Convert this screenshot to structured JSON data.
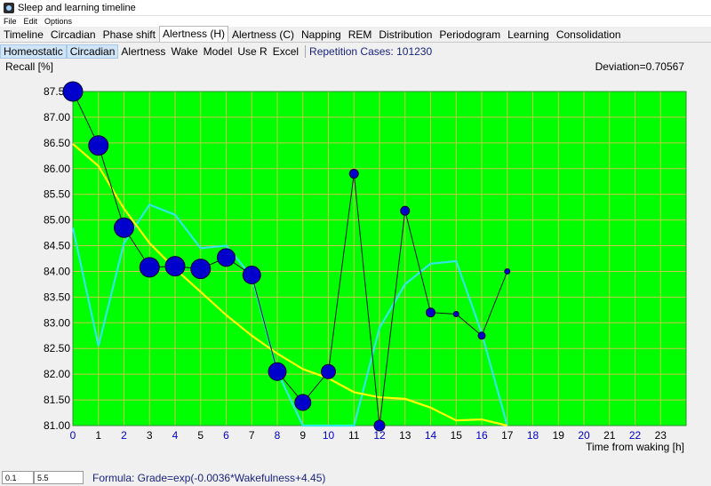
{
  "window": {
    "title": "Sleep and learning timeline"
  },
  "menu": [
    "File",
    "Edit",
    "Options"
  ],
  "tabs_primary": [
    {
      "label": "Timeline"
    },
    {
      "label": "Circadian"
    },
    {
      "label": "Phase shift"
    },
    {
      "label": "Alertness (H)",
      "active": true
    },
    {
      "label": "Alertness (C)"
    },
    {
      "label": "Napping"
    },
    {
      "label": "REM"
    },
    {
      "label": "Distribution"
    },
    {
      "label": "Periodogram"
    },
    {
      "label": "Learning"
    },
    {
      "label": "Consolidation"
    }
  ],
  "tabs_secondary": [
    {
      "label": "Homeostatic",
      "selected": true
    },
    {
      "label": "Circadian",
      "selected": true
    },
    {
      "label": "Alertness"
    },
    {
      "label": "Wake"
    },
    {
      "label": "Model"
    },
    {
      "label": "Use R"
    },
    {
      "label": "Excel"
    }
  ],
  "repetition_cases": "Repetition Cases: 101230",
  "deviation": "Deviation=0.70567",
  "status": {
    "input1": "0.1",
    "input2": "5.5",
    "formula": "Formula: Grade=exp(-0.0036*Wakefulness+4.45)"
  },
  "colors": {
    "plot_bg": "#00ff00",
    "grid": "#c8c84a",
    "cyan": "#33e6e6",
    "yellow": "#ffff00",
    "dot": "#0000cc",
    "axis_blue": "#0000cc"
  },
  "chart_data": {
    "type": "line",
    "ylabel": "Recall [%]",
    "xlabel": "Time from waking [h]",
    "xlim": [
      0,
      24
    ],
    "ylim": [
      81.0,
      87.5
    ],
    "x_ticks": [
      0,
      1,
      2,
      3,
      4,
      5,
      6,
      7,
      8,
      9,
      10,
      11,
      12,
      13,
      14,
      15,
      16,
      17,
      18,
      19,
      20,
      21,
      22,
      23
    ],
    "x_tick_colors": [
      "blue",
      "black",
      "blue",
      "black",
      "blue",
      "black",
      "blue",
      "black",
      "blue",
      "black",
      "blue",
      "black",
      "blue",
      "black",
      "blue",
      "black",
      "blue",
      "black",
      "blue",
      "black",
      "blue",
      "black",
      "blue",
      "black"
    ],
    "y_ticks": [
      "81.00",
      "81.50",
      "82.00",
      "82.50",
      "83.00",
      "83.50",
      "84.00",
      "84.50",
      "85.00",
      "85.50",
      "86.00",
      "86.50",
      "87.00",
      "87.50"
    ],
    "grid": true,
    "series": [
      {
        "style": "cyan-line",
        "x": [
          0,
          1,
          2,
          3,
          4,
          5,
          6,
          7,
          8,
          9,
          10,
          11,
          12,
          13,
          14,
          15,
          16,
          17
        ],
        "y": [
          84.85,
          82.55,
          84.55,
          85.3,
          85.1,
          84.45,
          84.5,
          83.9,
          82.05,
          81.0,
          81.0,
          81.0,
          82.9,
          83.75,
          84.15,
          84.2,
          82.8,
          81.0
        ]
      },
      {
        "style": "yellow-line",
        "x": [
          0,
          1,
          2,
          3,
          4,
          5,
          6,
          7,
          8,
          9,
          10,
          11,
          12,
          13,
          14,
          15,
          16,
          17
        ],
        "y": [
          86.48,
          86.05,
          85.22,
          84.55,
          84.05,
          83.6,
          83.15,
          82.75,
          82.4,
          82.1,
          81.92,
          81.65,
          81.55,
          81.52,
          81.35,
          81.1,
          81.12,
          81.0
        ]
      },
      {
        "style": "dots-line",
        "x": [
          0,
          1,
          2,
          3,
          4,
          5,
          6,
          7,
          8,
          9,
          10,
          11,
          12,
          13,
          14,
          15,
          16,
          17
        ],
        "y": [
          87.5,
          86.45,
          84.85,
          84.08,
          84.1,
          84.05,
          84.27,
          83.93,
          82.05,
          81.45,
          82.05,
          85.9,
          81.0,
          85.18,
          83.2,
          83.17,
          82.75,
          84.0
        ],
        "size": [
          11,
          11,
          11,
          11,
          11,
          11,
          10,
          10,
          10,
          9,
          8,
          5,
          6,
          5,
          5,
          3,
          4,
          3
        ]
      }
    ]
  }
}
